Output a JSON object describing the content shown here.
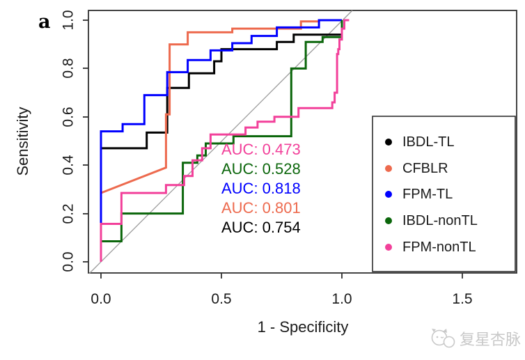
{
  "panel_label": "a",
  "axes": {
    "x": {
      "label": "1 - Specificity",
      "tick_labels": [
        "0.0",
        "0.5",
        "1.0",
        "1.5"
      ]
    },
    "y": {
      "label": "Sensitivity",
      "tick_labels": [
        "0.0",
        "0.2",
        "0.4",
        "0.6",
        "0.8",
        "1.0"
      ]
    }
  },
  "auc_labels": [
    {
      "text": "AUC: 0.473",
      "color": "#F2409A"
    },
    {
      "text": "AUC: 0.528",
      "color": "#0B660B"
    },
    {
      "text": "AUC: 0.818",
      "color": "#0000FF"
    },
    {
      "text": "AUC: 0.801",
      "color": "#ED6A4E"
    },
    {
      "text": "AUC: 0.754",
      "color": "#000000"
    }
  ],
  "legend": {
    "items": [
      {
        "label": "IBDL-TL",
        "color": "#000000"
      },
      {
        "label": "CFBLR",
        "color": "#ED6A4E"
      },
      {
        "label": "FPM-TL",
        "color": "#0000FF"
      },
      {
        "label": "IBDL-nonTL",
        "color": "#0B660B"
      },
      {
        "label": "FPM-nonTL",
        "color": "#F2409A"
      }
    ]
  },
  "watermark": {
    "text": "复星杏脉",
    "color": "#C8C8C8"
  },
  "chart_data": {
    "type": "line",
    "subtype": "roc-step-curves",
    "title": "",
    "xlabel": "1 - Specificity",
    "ylabel": "Sensitivity",
    "xlim": [
      0,
      1.5
    ],
    "ylim": [
      0,
      1.0
    ],
    "x_ticks": [
      0.0,
      0.5,
      1.0,
      1.5
    ],
    "y_ticks": [
      0.0,
      0.2,
      0.4,
      0.6,
      0.8,
      1.0
    ],
    "grid": false,
    "diagonal_reference": true,
    "legend_position": "bottom-right",
    "series": [
      {
        "name": "IBDL-TL",
        "color": "#000000",
        "auc": 0.754,
        "points": [
          [
            0,
            0
          ],
          [
            0,
            0.47
          ],
          [
            0.19,
            0.47
          ],
          [
            0.19,
            0.535
          ],
          [
            0.275,
            0.535
          ],
          [
            0.275,
            0.72
          ],
          [
            0.365,
            0.72
          ],
          [
            0.365,
            0.78
          ],
          [
            0.47,
            0.78
          ],
          [
            0.47,
            0.83
          ],
          [
            0.5,
            0.83
          ],
          [
            0.5,
            0.88
          ],
          [
            0.73,
            0.88
          ],
          [
            0.73,
            0.91
          ],
          [
            0.8,
            0.91
          ],
          [
            0.8,
            0.94
          ],
          [
            1.0,
            0.94
          ],
          [
            1.0,
            1.0
          ]
        ]
      },
      {
        "name": "CFBLR",
        "color": "#ED6A4E",
        "auc": 0.801,
        "points": [
          [
            0,
            0.285
          ],
          [
            0.27,
            0.39
          ],
          [
            0.27,
            0.61
          ],
          [
            0.285,
            0.61
          ],
          [
            0.285,
            0.9
          ],
          [
            0.36,
            0.9
          ],
          [
            0.36,
            0.95
          ],
          [
            0.545,
            0.95
          ],
          [
            0.545,
            0.965
          ],
          [
            0.83,
            0.965
          ],
          [
            0.83,
            0.995
          ],
          [
            0.905,
            0.995
          ],
          [
            0.905,
            1.0
          ],
          [
            1.0,
            1.0
          ]
        ]
      },
      {
        "name": "FPM-TL",
        "color": "#0000FF",
        "auc": 0.818,
        "points": [
          [
            0,
            0
          ],
          [
            0,
            0.54
          ],
          [
            0.09,
            0.54
          ],
          [
            0.09,
            0.57
          ],
          [
            0.18,
            0.57
          ],
          [
            0.18,
            0.69
          ],
          [
            0.275,
            0.69
          ],
          [
            0.275,
            0.785
          ],
          [
            0.36,
            0.785
          ],
          [
            0.36,
            0.835
          ],
          [
            0.455,
            0.835
          ],
          [
            0.455,
            0.875
          ],
          [
            0.545,
            0.875
          ],
          [
            0.545,
            0.905
          ],
          [
            0.625,
            0.905
          ],
          [
            0.625,
            0.935
          ],
          [
            0.73,
            0.935
          ],
          [
            0.73,
            0.97
          ],
          [
            0.905,
            0.97
          ],
          [
            0.905,
            1.0
          ],
          [
            1.0,
            1.0
          ]
        ]
      },
      {
        "name": "IBDL-nonTL",
        "color": "#0B660B",
        "auc": 0.528,
        "points": [
          [
            0,
            0
          ],
          [
            0,
            0.085
          ],
          [
            0.085,
            0.085
          ],
          [
            0.085,
            0.2
          ],
          [
            0.34,
            0.2
          ],
          [
            0.34,
            0.41
          ],
          [
            0.4,
            0.41
          ],
          [
            0.4,
            0.44
          ],
          [
            0.435,
            0.44
          ],
          [
            0.435,
            0.49
          ],
          [
            0.55,
            0.49
          ],
          [
            0.55,
            0.52
          ],
          [
            0.79,
            0.52
          ],
          [
            0.79,
            0.8
          ],
          [
            0.85,
            0.8
          ],
          [
            0.85,
            0.91
          ],
          [
            0.92,
            0.91
          ],
          [
            0.92,
            0.93
          ],
          [
            1.0,
            0.93
          ],
          [
            1.0,
            1.0
          ]
        ]
      },
      {
        "name": "FPM-nonTL",
        "color": "#F2409A",
        "auc": 0.473,
        "points": [
          [
            0,
            0
          ],
          [
            0,
            0.157
          ],
          [
            0.085,
            0.157
          ],
          [
            0.085,
            0.285
          ],
          [
            0.27,
            0.285
          ],
          [
            0.27,
            0.318
          ],
          [
            0.345,
            0.318
          ],
          [
            0.345,
            0.355
          ],
          [
            0.38,
            0.355
          ],
          [
            0.38,
            0.42
          ],
          [
            0.42,
            0.42
          ],
          [
            0.42,
            0.47
          ],
          [
            0.455,
            0.47
          ],
          [
            0.455,
            0.527
          ],
          [
            0.6,
            0.527
          ],
          [
            0.6,
            0.556
          ],
          [
            0.65,
            0.556
          ],
          [
            0.65,
            0.58
          ],
          [
            0.72,
            0.58
          ],
          [
            0.72,
            0.6
          ],
          [
            0.82,
            0.6
          ],
          [
            0.82,
            0.636
          ],
          [
            0.96,
            0.636
          ],
          [
            0.96,
            0.66
          ],
          [
            0.97,
            0.66
          ],
          [
            0.97,
            0.7
          ],
          [
            0.98,
            0.7
          ],
          [
            0.98,
            0.86
          ],
          [
            0.985,
            0.86
          ],
          [
            0.985,
            0.88
          ],
          [
            0.99,
            0.88
          ],
          [
            0.99,
            0.92
          ],
          [
            1.0,
            0.92
          ],
          [
            1.0,
            0.965
          ],
          [
            1.01,
            0.965
          ],
          [
            1.01,
            1.0
          ],
          [
            1.03,
            1.0
          ]
        ]
      }
    ]
  }
}
